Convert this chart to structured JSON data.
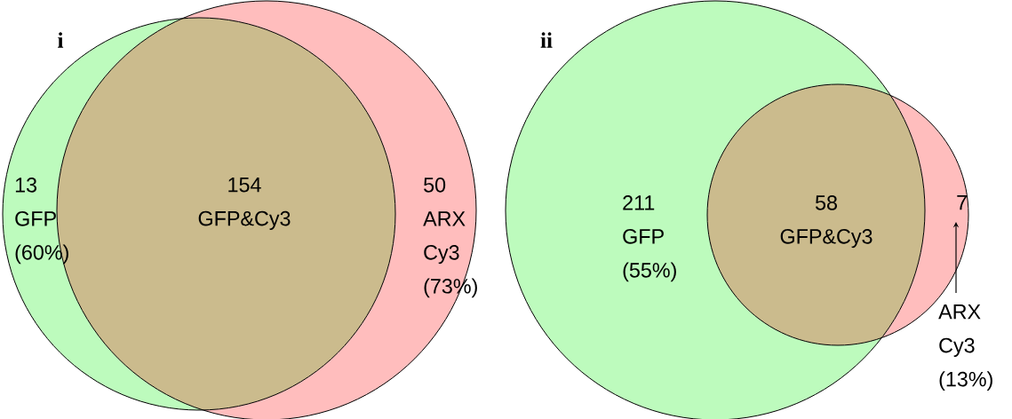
{
  "chart_data": [
    {
      "type": "other",
      "title": "i",
      "categories": [
        "GFP",
        "GFP&Cy3",
        "ARX Cy3"
      ],
      "values": [
        13,
        154,
        50
      ],
      "data_labels": true,
      "colors": [
        "#bdfbbd",
        "#cbbb8d",
        "#ffbdbd"
      ],
      "annotations": [
        "(60%)",
        "(73%)"
      ]
    },
    {
      "type": "other",
      "title": "ii",
      "categories": [
        "GFP",
        "GFP&Cy3",
        "ARX Cy3"
      ],
      "values": [
        211,
        58,
        7
      ],
      "data_labels": true,
      "colors": [
        "#bdfbbd",
        "#cbbb8d",
        "#ffbdbd"
      ],
      "annotations": [
        "(55%)",
        "(13%)"
      ]
    }
  ]
}
